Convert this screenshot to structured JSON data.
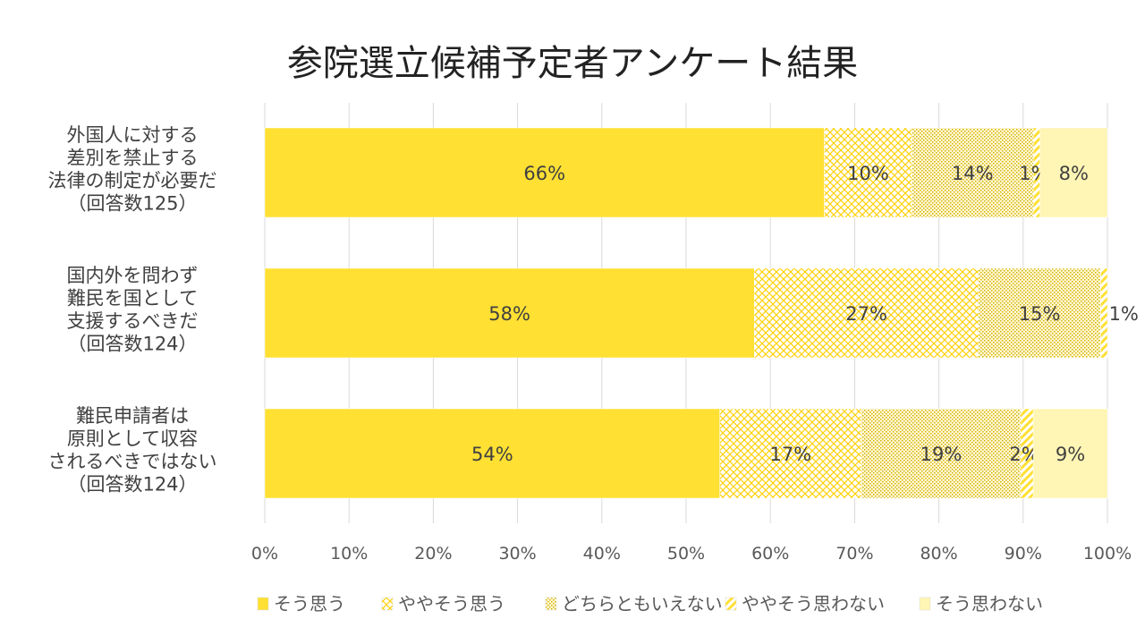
{
  "chart_data": {
    "type": "bar",
    "orientation": "horizontal",
    "stacked": "100%",
    "title": "参院選立候補予定者アンケート結果",
    "categories": [
      [
        "外国人に対する",
        "差別を禁止する",
        "法律の制定が必要だ",
        "（回答数125）"
      ],
      [
        "国内外を問わず",
        "難民を国として",
        "支援するべきだ",
        "（回答数124）"
      ],
      [
        "難民申請者は",
        "原則として収容",
        "されるべきではない",
        "（回答数124）"
      ]
    ],
    "series": [
      {
        "name": "そう思う",
        "pattern": "solid",
        "color": "#FFE033",
        "values": [
          66.4,
          58.1,
          54.0
        ],
        "labels": [
          "66%",
          "58%",
          "54%"
        ]
      },
      {
        "name": "ややそう思う",
        "pattern": "diamond",
        "color": "#FFD700",
        "values": [
          10.4,
          26.6,
          16.8
        ],
        "labels": [
          "10%",
          "27%",
          "17%"
        ]
      },
      {
        "name": "どちらともいえない",
        "pattern": "dots",
        "color": "#D4B000",
        "values": [
          14.4,
          14.5,
          18.9
        ],
        "labels": [
          "14%",
          "15%",
          "19%"
        ]
      },
      {
        "name": "ややそう思わない",
        "pattern": "stripes",
        "color": "#FFE033",
        "values": [
          0.8,
          0.8,
          1.5
        ],
        "labels": [
          "1%",
          "1%",
          "2%"
        ]
      },
      {
        "name": "そう思わない",
        "pattern": "light",
        "color": "#FFF5B4",
        "values": [
          8.0,
          0.0,
          8.8
        ],
        "labels": [
          "8%",
          "",
          "9%"
        ]
      }
    ],
    "xlim": [
      0,
      100
    ],
    "xticks": [
      "0%",
      "10%",
      "20%",
      "30%",
      "40%",
      "50%",
      "60%",
      "70%",
      "80%",
      "90%",
      "100%"
    ],
    "grid": true,
    "legend": "bottom"
  }
}
